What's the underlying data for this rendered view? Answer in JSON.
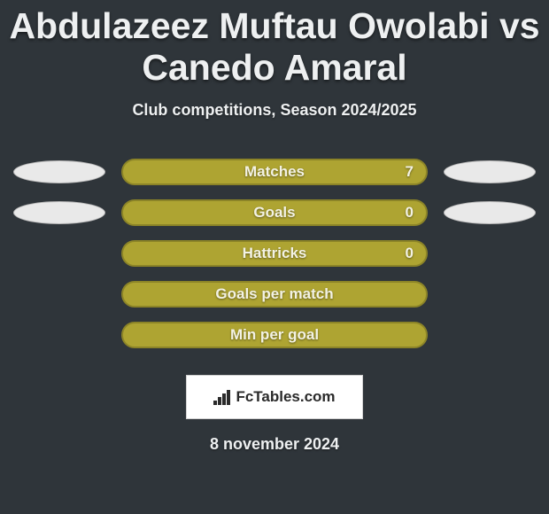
{
  "colors": {
    "background": "#2f353a",
    "text": "#eef0f1",
    "bar_fill": "#aea432",
    "bar_border": "#8c8427",
    "ellipse_fill": "#e9e9e9",
    "logo_bg": "#ffffff"
  },
  "title": {
    "text": "Abdulazeez Muftau Owolabi vs Canedo Amaral",
    "fontsize": 41
  },
  "subtitle": {
    "text": "Club competitions, Season 2024/2025",
    "fontsize": 18
  },
  "rows": [
    {
      "label": "Matches",
      "value": "7",
      "show_value": true,
      "left_ellipse": true,
      "right_ellipse": true
    },
    {
      "label": "Goals",
      "value": "0",
      "show_value": true,
      "left_ellipse": true,
      "right_ellipse": true
    },
    {
      "label": "Hattricks",
      "value": "0",
      "show_value": true,
      "left_ellipse": false,
      "right_ellipse": false
    },
    {
      "label": "Goals per match",
      "value": "",
      "show_value": false,
      "left_ellipse": false,
      "right_ellipse": false
    },
    {
      "label": "Min per goal",
      "value": "",
      "show_value": false,
      "left_ellipse": false,
      "right_ellipse": false
    }
  ],
  "bar_style": {
    "label_fontsize": 17,
    "value_fontsize": 17,
    "label_color": "#f3f2e4",
    "value_color": "#f3f2e4"
  },
  "logo": {
    "text": "FcTables.com",
    "fontsize": 17
  },
  "date": {
    "text": "8 november 2024",
    "fontsize": 18
  }
}
